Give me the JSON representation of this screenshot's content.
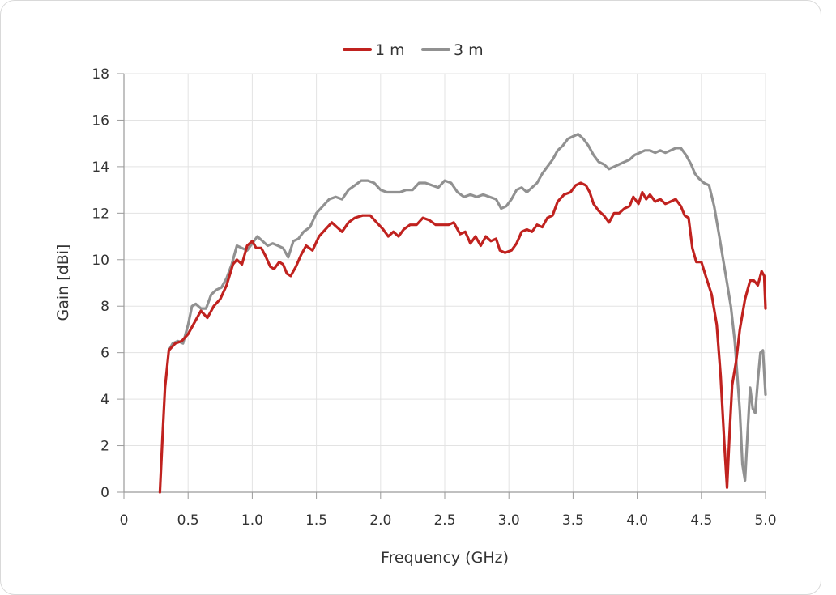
{
  "chart_data": {
    "type": "line",
    "xlabel": "Frequency (GHz)",
    "ylabel": "Gain [dBi]",
    "xlim": [
      0,
      5.0
    ],
    "ylim": [
      0,
      18
    ],
    "x_ticks": [
      "0",
      "0.5",
      "1.0",
      "1.5",
      "2.0",
      "2.5",
      "3.0",
      "3.5",
      "4.0",
      "4.5",
      "5.0"
    ],
    "y_ticks": [
      "0",
      "2",
      "4",
      "6",
      "8",
      "10",
      "12",
      "14",
      "16",
      "18"
    ],
    "grid": true,
    "legend_position": "top-center",
    "series": [
      {
        "name": "1 m",
        "color": "#c0221f",
        "points": [
          [
            0.28,
            0.0
          ],
          [
            0.3,
            2.3
          ],
          [
            0.32,
            4.5
          ],
          [
            0.35,
            6.1
          ],
          [
            0.4,
            6.4
          ],
          [
            0.45,
            6.5
          ],
          [
            0.5,
            6.8
          ],
          [
            0.55,
            7.3
          ],
          [
            0.6,
            7.8
          ],
          [
            0.65,
            7.5
          ],
          [
            0.7,
            8.0
          ],
          [
            0.75,
            8.3
          ],
          [
            0.8,
            8.9
          ],
          [
            0.85,
            9.8
          ],
          [
            0.88,
            10.0
          ],
          [
            0.92,
            9.8
          ],
          [
            0.96,
            10.6
          ],
          [
            1.0,
            10.8
          ],
          [
            1.03,
            10.5
          ],
          [
            1.07,
            10.5
          ],
          [
            1.1,
            10.2
          ],
          [
            1.14,
            9.7
          ],
          [
            1.17,
            9.6
          ],
          [
            1.21,
            9.9
          ],
          [
            1.24,
            9.8
          ],
          [
            1.27,
            9.4
          ],
          [
            1.3,
            9.3
          ],
          [
            1.34,
            9.7
          ],
          [
            1.38,
            10.2
          ],
          [
            1.42,
            10.6
          ],
          [
            1.47,
            10.4
          ],
          [
            1.52,
            11.0
          ],
          [
            1.57,
            11.3
          ],
          [
            1.62,
            11.6
          ],
          [
            1.66,
            11.4
          ],
          [
            1.7,
            11.2
          ],
          [
            1.75,
            11.6
          ],
          [
            1.8,
            11.8
          ],
          [
            1.86,
            11.9
          ],
          [
            1.92,
            11.9
          ],
          [
            1.97,
            11.6
          ],
          [
            2.02,
            11.3
          ],
          [
            2.06,
            11.0
          ],
          [
            2.1,
            11.2
          ],
          [
            2.14,
            11.0
          ],
          [
            2.18,
            11.3
          ],
          [
            2.23,
            11.5
          ],
          [
            2.28,
            11.5
          ],
          [
            2.33,
            11.8
          ],
          [
            2.38,
            11.7
          ],
          [
            2.43,
            11.5
          ],
          [
            2.48,
            11.5
          ],
          [
            2.53,
            11.5
          ],
          [
            2.57,
            11.6
          ],
          [
            2.62,
            11.1
          ],
          [
            2.66,
            11.2
          ],
          [
            2.7,
            10.7
          ],
          [
            2.74,
            11.0
          ],
          [
            2.78,
            10.6
          ],
          [
            2.82,
            11.0
          ],
          [
            2.86,
            10.8
          ],
          [
            2.9,
            10.9
          ],
          [
            2.93,
            10.4
          ],
          [
            2.97,
            10.3
          ],
          [
            3.02,
            10.4
          ],
          [
            3.06,
            10.7
          ],
          [
            3.1,
            11.2
          ],
          [
            3.14,
            11.3
          ],
          [
            3.18,
            11.2
          ],
          [
            3.22,
            11.5
          ],
          [
            3.26,
            11.4
          ],
          [
            3.3,
            11.8
          ],
          [
            3.34,
            11.9
          ],
          [
            3.38,
            12.5
          ],
          [
            3.43,
            12.8
          ],
          [
            3.48,
            12.9
          ],
          [
            3.52,
            13.2
          ],
          [
            3.56,
            13.3
          ],
          [
            3.6,
            13.2
          ],
          [
            3.63,
            12.9
          ],
          [
            3.66,
            12.4
          ],
          [
            3.7,
            12.1
          ],
          [
            3.74,
            11.9
          ],
          [
            3.78,
            11.6
          ],
          [
            3.82,
            12.0
          ],
          [
            3.86,
            12.0
          ],
          [
            3.9,
            12.2
          ],
          [
            3.94,
            12.3
          ],
          [
            3.97,
            12.7
          ],
          [
            4.01,
            12.4
          ],
          [
            4.04,
            12.9
          ],
          [
            4.07,
            12.6
          ],
          [
            4.1,
            12.8
          ],
          [
            4.14,
            12.5
          ],
          [
            4.18,
            12.6
          ],
          [
            4.22,
            12.4
          ],
          [
            4.26,
            12.5
          ],
          [
            4.3,
            12.6
          ],
          [
            4.34,
            12.3
          ],
          [
            4.37,
            11.9
          ],
          [
            4.4,
            11.8
          ],
          [
            4.43,
            10.5
          ],
          [
            4.46,
            9.9
          ],
          [
            4.5,
            9.9
          ],
          [
            4.54,
            9.2
          ],
          [
            4.58,
            8.5
          ],
          [
            4.62,
            7.2
          ],
          [
            4.65,
            5.0
          ],
          [
            4.68,
            2.0
          ],
          [
            4.7,
            0.2
          ],
          [
            4.72,
            2.5
          ],
          [
            4.74,
            4.6
          ],
          [
            4.77,
            5.6
          ],
          [
            4.8,
            7.0
          ],
          [
            4.84,
            8.3
          ],
          [
            4.88,
            9.1
          ],
          [
            4.91,
            9.1
          ],
          [
            4.94,
            8.9
          ],
          [
            4.97,
            9.5
          ],
          [
            4.99,
            9.3
          ],
          [
            5.0,
            7.9
          ]
        ]
      },
      {
        "name": "3 m",
        "color": "#919191",
        "points": [
          [
            0.35,
            6.1
          ],
          [
            0.38,
            6.4
          ],
          [
            0.42,
            6.5
          ],
          [
            0.46,
            6.4
          ],
          [
            0.5,
            7.2
          ],
          [
            0.53,
            8.0
          ],
          [
            0.56,
            8.1
          ],
          [
            0.6,
            7.9
          ],
          [
            0.64,
            7.9
          ],
          [
            0.68,
            8.5
          ],
          [
            0.72,
            8.7
          ],
          [
            0.76,
            8.8
          ],
          [
            0.8,
            9.2
          ],
          [
            0.84,
            9.8
          ],
          [
            0.88,
            10.6
          ],
          [
            0.92,
            10.5
          ],
          [
            0.96,
            10.4
          ],
          [
            1.0,
            10.7
          ],
          [
            1.04,
            11.0
          ],
          [
            1.08,
            10.8
          ],
          [
            1.12,
            10.6
          ],
          [
            1.16,
            10.7
          ],
          [
            1.2,
            10.6
          ],
          [
            1.24,
            10.5
          ],
          [
            1.28,
            10.1
          ],
          [
            1.32,
            10.8
          ],
          [
            1.36,
            10.9
          ],
          [
            1.4,
            11.2
          ],
          [
            1.45,
            11.4
          ],
          [
            1.5,
            12.0
          ],
          [
            1.55,
            12.3
          ],
          [
            1.6,
            12.6
          ],
          [
            1.65,
            12.7
          ],
          [
            1.7,
            12.6
          ],
          [
            1.75,
            13.0
          ],
          [
            1.8,
            13.2
          ],
          [
            1.85,
            13.4
          ],
          [
            1.9,
            13.4
          ],
          [
            1.95,
            13.3
          ],
          [
            2.0,
            13.0
          ],
          [
            2.05,
            12.9
          ],
          [
            2.1,
            12.9
          ],
          [
            2.15,
            12.9
          ],
          [
            2.2,
            13.0
          ],
          [
            2.25,
            13.0
          ],
          [
            2.3,
            13.3
          ],
          [
            2.35,
            13.3
          ],
          [
            2.4,
            13.2
          ],
          [
            2.45,
            13.1
          ],
          [
            2.5,
            13.4
          ],
          [
            2.55,
            13.3
          ],
          [
            2.6,
            12.9
          ],
          [
            2.65,
            12.7
          ],
          [
            2.7,
            12.8
          ],
          [
            2.75,
            12.7
          ],
          [
            2.8,
            12.8
          ],
          [
            2.85,
            12.7
          ],
          [
            2.9,
            12.6
          ],
          [
            2.94,
            12.2
          ],
          [
            2.98,
            12.3
          ],
          [
            3.02,
            12.6
          ],
          [
            3.06,
            13.0
          ],
          [
            3.1,
            13.1
          ],
          [
            3.14,
            12.9
          ],
          [
            3.18,
            13.1
          ],
          [
            3.22,
            13.3
          ],
          [
            3.26,
            13.7
          ],
          [
            3.3,
            14.0
          ],
          [
            3.34,
            14.3
          ],
          [
            3.38,
            14.7
          ],
          [
            3.42,
            14.9
          ],
          [
            3.46,
            15.2
          ],
          [
            3.5,
            15.3
          ],
          [
            3.54,
            15.4
          ],
          [
            3.58,
            15.2
          ],
          [
            3.62,
            14.9
          ],
          [
            3.66,
            14.5
          ],
          [
            3.7,
            14.2
          ],
          [
            3.74,
            14.1
          ],
          [
            3.78,
            13.9
          ],
          [
            3.82,
            14.0
          ],
          [
            3.86,
            14.1
          ],
          [
            3.9,
            14.2
          ],
          [
            3.94,
            14.3
          ],
          [
            3.98,
            14.5
          ],
          [
            4.02,
            14.6
          ],
          [
            4.06,
            14.7
          ],
          [
            4.1,
            14.7
          ],
          [
            4.14,
            14.6
          ],
          [
            4.18,
            14.7
          ],
          [
            4.22,
            14.6
          ],
          [
            4.26,
            14.7
          ],
          [
            4.3,
            14.8
          ],
          [
            4.34,
            14.8
          ],
          [
            4.38,
            14.5
          ],
          [
            4.42,
            14.1
          ],
          [
            4.45,
            13.7
          ],
          [
            4.48,
            13.5
          ],
          [
            4.52,
            13.3
          ],
          [
            4.56,
            13.2
          ],
          [
            4.6,
            12.3
          ],
          [
            4.64,
            11.0
          ],
          [
            4.67,
            10.0
          ],
          [
            4.7,
            9.0
          ],
          [
            4.73,
            8.0
          ],
          [
            4.76,
            6.5
          ],
          [
            4.78,
            5.0
          ],
          [
            4.8,
            3.5
          ],
          [
            4.82,
            1.2
          ],
          [
            4.84,
            0.5
          ],
          [
            4.86,
            2.5
          ],
          [
            4.88,
            4.5
          ],
          [
            4.9,
            3.6
          ],
          [
            4.92,
            3.4
          ],
          [
            4.94,
            4.8
          ],
          [
            4.96,
            6.0
          ],
          [
            4.98,
            6.1
          ],
          [
            5.0,
            4.2
          ]
        ]
      }
    ]
  }
}
